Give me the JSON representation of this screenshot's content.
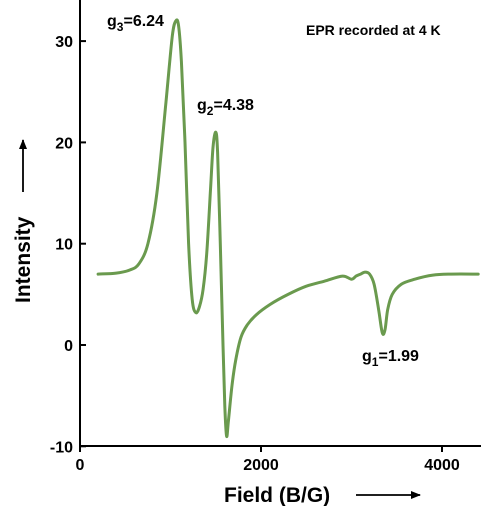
{
  "chart_data": {
    "type": "line",
    "title": "",
    "xlabel": "Field (B/G)",
    "ylabel": "Intensity",
    "xlim": [
      0,
      4400
    ],
    "ylim": [
      -10,
      33
    ],
    "x_ticks": [
      0,
      2000,
      4000
    ],
    "y_ticks": [
      -10,
      0,
      10,
      20,
      30
    ],
    "grid": false,
    "corner_note": "EPR recorded at 4 K",
    "line_color": "#6a9a4e",
    "annotations": [
      {
        "name": "g3",
        "base": "g",
        "sub": "3",
        "value": "=6.24",
        "x": 1080,
        "y": 32
      },
      {
        "name": "g2",
        "base": "g",
        "sub": "2",
        "value": "=4.38",
        "x": 1510,
        "y": 21
      },
      {
        "name": "g1",
        "base": "g",
        "sub": "1",
        "value": "=1.99",
        "x": 3350,
        "y": 1.2
      }
    ],
    "series": [
      {
        "x": [
          200,
          400,
          550,
          650,
          750,
          850,
          950,
          1020,
          1060,
          1090,
          1120,
          1160,
          1200,
          1240,
          1280,
          1320,
          1360,
          1400,
          1440,
          1470,
          1500,
          1520,
          1550,
          1580,
          1600,
          1620,
          1640,
          1680,
          1720,
          1780,
          1850,
          1950,
          2100,
          2300,
          2500,
          2700,
          2900,
          3000,
          3050,
          3100,
          3150,
          3200,
          3250,
          3300,
          3340,
          3370,
          3400,
          3450,
          3550,
          3700,
          3900,
          4100,
          4400
        ],
        "y": [
          7,
          7.1,
          7.4,
          8,
          10,
          15,
          24,
          30.5,
          32,
          31.5,
          28,
          20,
          10,
          4.5,
          3.2,
          3.8,
          5.5,
          9,
          15,
          19.5,
          21,
          19,
          10,
          0,
          -6,
          -9,
          -7.5,
          -4,
          -1.5,
          0.8,
          2,
          3,
          4,
          5,
          5.8,
          6.3,
          6.8,
          6.5,
          6.8,
          7,
          7.2,
          7,
          6,
          3.5,
          1.2,
          1.5,
          3.5,
          5,
          6,
          6.5,
          6.9,
          7,
          7
        ]
      }
    ]
  }
}
